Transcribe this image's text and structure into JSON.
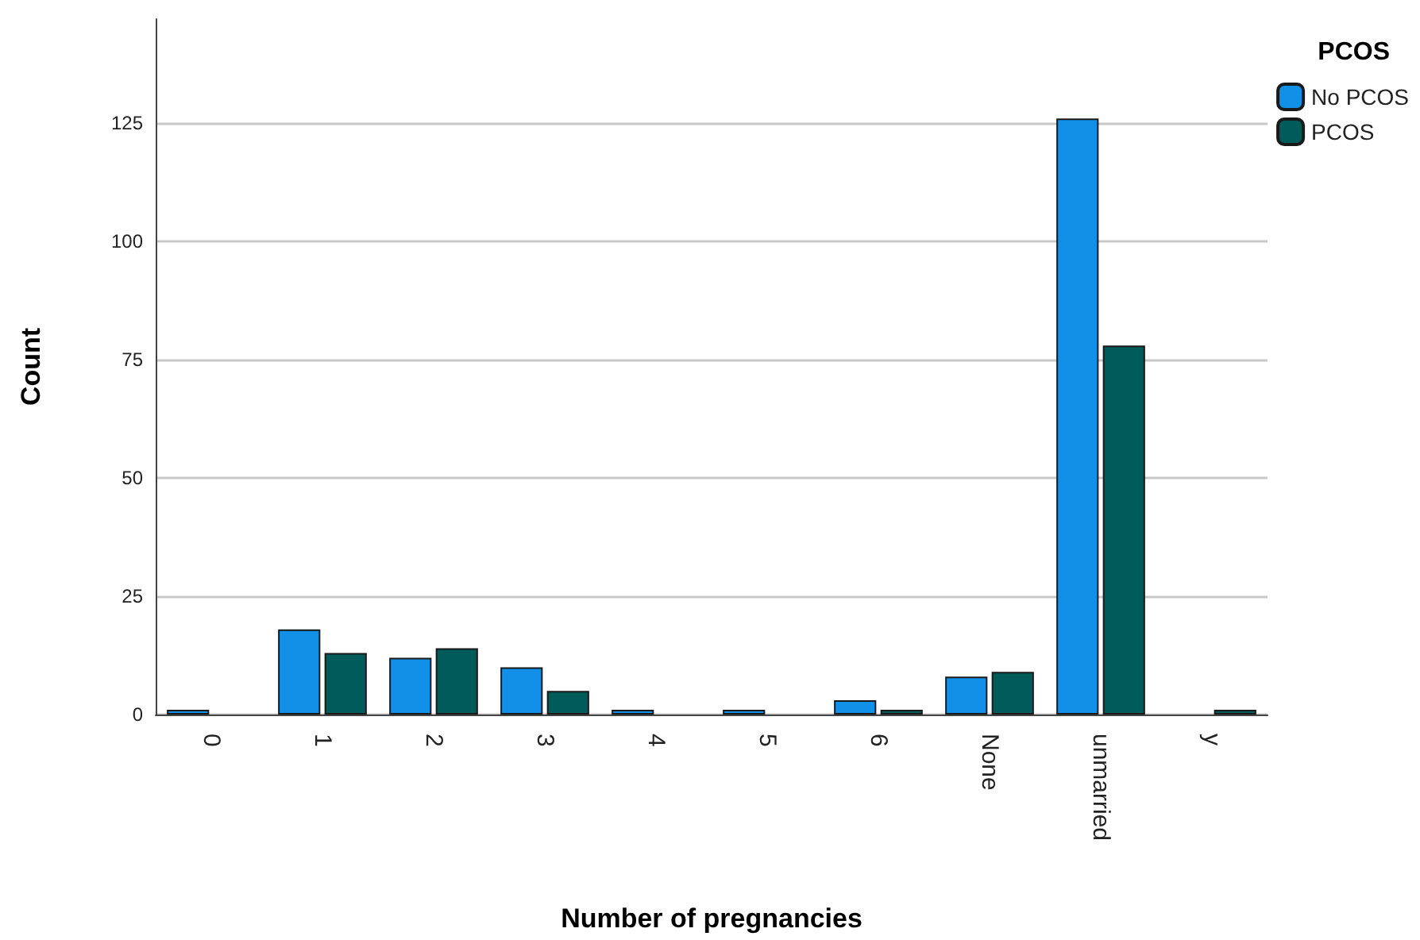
{
  "chart_data": {
    "type": "bar",
    "xlabel": "Number of pregnancies",
    "ylabel": "Count",
    "legend_title": "PCOS",
    "categories": [
      "0",
      "1",
      "2",
      "3",
      "4",
      "5",
      "6",
      "None",
      "unmarried",
      "y"
    ],
    "series": [
      {
        "name": "No PCOS",
        "color": "#1290e8",
        "values": [
          1,
          18,
          12,
          10,
          1,
          1,
          3,
          8,
          126,
          null
        ]
      },
      {
        "name": "PCOS",
        "color": "#005b5b",
        "values": [
          null,
          13,
          14,
          5,
          null,
          null,
          1,
          9,
          78,
          1
        ]
      }
    ],
    "ylim": [
      0,
      147
    ],
    "yticks": [
      0,
      25,
      50,
      75,
      100,
      125
    ],
    "grid": "y",
    "legend": "top right"
  }
}
